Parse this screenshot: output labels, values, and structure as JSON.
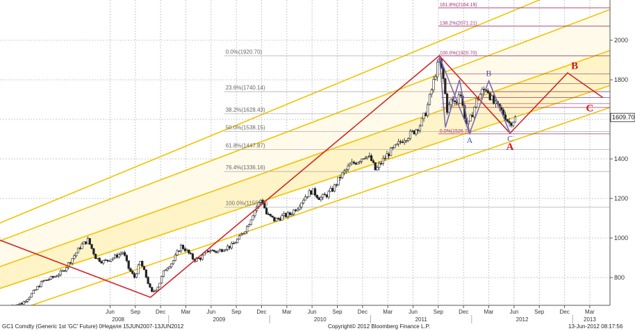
{
  "chart_data": {
    "type": "candlestick",
    "colors": {
      "band_fill": "#fff4c8",
      "channel": "#f2c200",
      "zigzag": "#d42424",
      "wave": "#7c6fb5",
      "fib": "#a2326c",
      "candle": "#222222"
    },
    "y_ticks": [
      800,
      1000,
      1200,
      1400,
      1600,
      1800,
      2000
    ],
    "ylim": [
      680,
      2200
    ],
    "last_price_label": "1609.70",
    "x_ticks": [
      {
        "label": "Jun",
        "t": 2008.42
      },
      {
        "label": "Sep",
        "t": 2008.67
      },
      {
        "label": "Dec",
        "t": 2008.92
      },
      {
        "label": "Mar",
        "t": 2009.17
      },
      {
        "label": "Jun",
        "t": 2009.42
      },
      {
        "label": "Sep",
        "t": 2009.67
      },
      {
        "label": "Dec",
        "t": 2009.92
      },
      {
        "label": "Mar",
        "t": 2010.17
      },
      {
        "label": "Jun",
        "t": 2010.42
      },
      {
        "label": "Sep",
        "t": 2010.67
      },
      {
        "label": "Dec",
        "t": 2010.92
      },
      {
        "label": "Mar",
        "t": 2011.17
      },
      {
        "label": "Jun",
        "t": 2011.42
      },
      {
        "label": "Sep",
        "t": 2011.67
      },
      {
        "label": "Dec",
        "t": 2011.92
      },
      {
        "label": "Mar",
        "t": 2012.17
      },
      {
        "label": "Jun",
        "t": 2012.42
      },
      {
        "label": "Sep",
        "t": 2012.67
      },
      {
        "label": "Dec",
        "t": 2012.92
      },
      {
        "label": "Mar",
        "t": 2013.17
      }
    ],
    "year_labels": [
      {
        "label": "2008",
        "t": 2008.5
      },
      {
        "label": "2009",
        "t": 2009.5
      },
      {
        "label": "2010",
        "t": 2010.5
      },
      {
        "label": "2011",
        "t": 2011.5
      },
      {
        "label": "2012",
        "t": 2012.5
      },
      {
        "label": "2013",
        "t": 2013.17
      }
    ],
    "fib_major": [
      {
        "label": "0.0%(1920.70)",
        "v": 1920.7
      },
      {
        "label": "23.6%(1740.14)",
        "v": 1740.14
      },
      {
        "label": "38.2%(1628.43)",
        "v": 1628.43
      },
      {
        "label": "50.0%(1538.15)",
        "v": 1538.15
      },
      {
        "label": "61.8%(1447.87)",
        "v": 1447.87
      },
      {
        "label": "76.4%(1336.16)",
        "v": 1336.16
      },
      {
        "label": "100.0%(1155.60)",
        "v": 1155.6
      }
    ],
    "fib_minor": [
      {
        "label": "161.8%(2164.19)",
        "v": 2164.19
      },
      {
        "label": "138.2%(2071.21)",
        "v": 2071.21
      },
      {
        "label": "100.0%(1920.70)",
        "v": 1920.7
      },
      {
        "label": "0.0%(1526.70)",
        "v": 1526.7
      }
    ],
    "fib_minor_extra_levels": [
      1830,
      1780,
      1740,
      1710,
      1680,
      1660
    ],
    "series_close": [
      [
        2007.45,
        660
      ],
      [
        2007.55,
        670
      ],
      [
        2007.65,
        720
      ],
      [
        2007.75,
        780
      ],
      [
        2007.85,
        800
      ],
      [
        2007.95,
        830
      ],
      [
        2008.05,
        900
      ],
      [
        2008.13,
        960
      ],
      [
        2008.2,
        990
      ],
      [
        2008.28,
        900
      ],
      [
        2008.35,
        880
      ],
      [
        2008.45,
        900
      ],
      [
        2008.55,
        930
      ],
      [
        2008.6,
        850
      ],
      [
        2008.66,
        800
      ],
      [
        2008.72,
        880
      ],
      [
        2008.78,
        800
      ],
      [
        2008.83,
        720
      ],
      [
        2008.9,
        760
      ],
      [
        2008.96,
        840
      ],
      [
        2009.04,
        880
      ],
      [
        2009.12,
        960
      ],
      [
        2009.17,
        940
      ],
      [
        2009.25,
        890
      ],
      [
        2009.32,
        900
      ],
      [
        2009.4,
        940
      ],
      [
        2009.48,
        930
      ],
      [
        2009.55,
        950
      ],
      [
        2009.62,
        960
      ],
      [
        2009.7,
        1000
      ],
      [
        2009.78,
        1060
      ],
      [
        2009.84,
        1130
      ],
      [
        2009.92,
        1200
      ],
      [
        2009.97,
        1120
      ],
      [
        2010.05,
        1090
      ],
      [
        2010.13,
        1110
      ],
      [
        2010.2,
        1120
      ],
      [
        2010.28,
        1160
      ],
      [
        2010.35,
        1210
      ],
      [
        2010.42,
        1240
      ],
      [
        2010.5,
        1200
      ],
      [
        2010.57,
        1220
      ],
      [
        2010.63,
        1250
      ],
      [
        2010.7,
        1310
      ],
      [
        2010.75,
        1340
      ],
      [
        2010.8,
        1370
      ],
      [
        2010.87,
        1390
      ],
      [
        2010.95,
        1420
      ],
      [
        2011.0,
        1400
      ],
      [
        2011.05,
        1340
      ],
      [
        2011.1,
        1380
      ],
      [
        2011.18,
        1430
      ],
      [
        2011.25,
        1460
      ],
      [
        2011.32,
        1500
      ],
      [
        2011.38,
        1520
      ],
      [
        2011.43,
        1540
      ],
      [
        2011.5,
        1580
      ],
      [
        2011.55,
        1640
      ],
      [
        2011.6,
        1740
      ],
      [
        2011.65,
        1850
      ],
      [
        2011.68,
        1900
      ],
      [
        2011.72,
        1800
      ],
      [
        2011.76,
        1640
      ],
      [
        2011.8,
        1700
      ],
      [
        2011.85,
        1680
      ],
      [
        2011.88,
        1760
      ],
      [
        2011.92,
        1640
      ],
      [
        2011.96,
        1560
      ],
      [
        2012.0,
        1620
      ],
      [
        2012.05,
        1700
      ],
      [
        2012.1,
        1740
      ],
      [
        2012.15,
        1760
      ],
      [
        2012.18,
        1720
      ],
      [
        2012.22,
        1680
      ],
      [
        2012.28,
        1650
      ],
      [
        2012.33,
        1620
      ],
      [
        2012.37,
        1580
      ],
      [
        2012.4,
        1590
      ],
      [
        2012.44,
        1610
      ]
    ],
    "zigzag": [
      [
        2007.3,
        995
      ],
      [
        2008.82,
        700
      ],
      [
        2011.68,
        1922
      ],
      [
        2012.38,
        1530
      ],
      [
        2012.95,
        1835
      ],
      [
        2013.3,
        1710
      ]
    ],
    "wave_lines": [
      [
        [
          2011.68,
          1920
        ],
        [
          2011.74,
          1560
        ],
        [
          2011.88,
          1800
        ],
        [
          2011.98,
          1530
        ],
        [
          2012.17,
          1795
        ],
        [
          2012.38,
          1530
        ]
      ],
      [
        [
          2011.68,
          1920
        ],
        [
          2011.98,
          1530
        ]
      ],
      [
        [
          2011.88,
          1800
        ],
        [
          2011.74,
          1560
        ]
      ],
      [
        [
          2012.17,
          1795
        ],
        [
          2012.38,
          1530
        ]
      ]
    ],
    "channel_inner_upper": [
      [
        2007.3,
        980
      ],
      [
        2013.6,
        2200
      ]
    ],
    "channel_inner_lower": [
      [
        2007.3,
        740
      ],
      [
        2013.6,
        1810
      ]
    ],
    "channel_outer_upper": [
      [
        2007.3,
        1070
      ],
      [
        2013.6,
        2400
      ]
    ],
    "channel_outer_lower": [
      [
        2007.3,
        600
      ],
      [
        2013.6,
        1700
      ]
    ],
    "channel_mid_upper": [
      [
        2007.3,
        850
      ],
      [
        2013.6,
        1990
      ]
    ],
    "wave_labels_red": [
      {
        "label": "A",
        "t": 2012.38,
        "v": 1445
      },
      {
        "label": "B",
        "t": 2013.02,
        "v": 1855
      },
      {
        "label": "C",
        "t": 2013.17,
        "v": 1640
      }
    ],
    "wave_labels_blue": [
      {
        "label": "A",
        "t": 2011.98,
        "v": 1480
      },
      {
        "label": "B",
        "t": 2012.17,
        "v": 1820
      },
      {
        "label": "C",
        "t": 2012.38,
        "v": 1490
      }
    ]
  },
  "footer": {
    "left": "GC1 Comdty (Generic 1st 'GC' Future) 0Неделя 15JUN2007-13JUN2012",
    "center": "Copyright© 2012 Bloomberg Finance L.P.",
    "right": "13-Jun-2012 08:17:56"
  }
}
